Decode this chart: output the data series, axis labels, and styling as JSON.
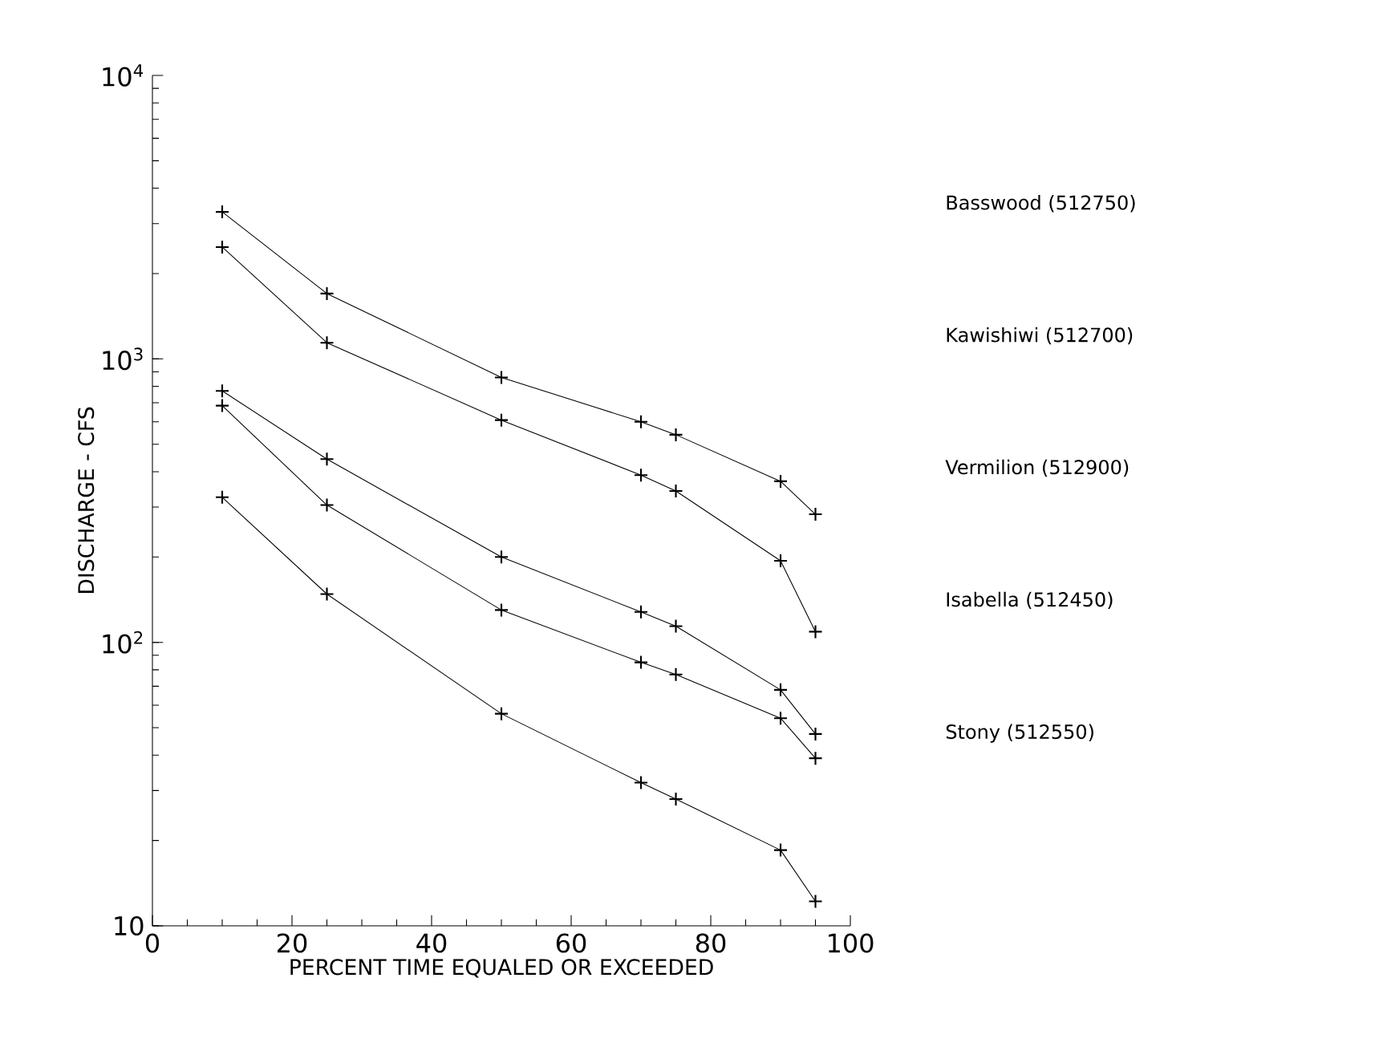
{
  "chart_data": {
    "type": "line",
    "xlabel": "PERCENT TIME EQUALED OR EXCEEDED",
    "ylabel": "DISCHARGE  -  CFS",
    "x": [
      10,
      25,
      50,
      70,
      75,
      90,
      95
    ],
    "series": [
      {
        "name": "Basswood (512750)",
        "color": "#000000",
        "values": [
          3300,
          1700,
          860,
          600,
          540,
          370,
          283
        ]
      },
      {
        "name": "Kawishiwi (512700)",
        "color": "#000000",
        "values": [
          2480,
          1140,
          608,
          389,
          342,
          194,
          109
        ]
      },
      {
        "name": "Vermilion (512900)",
        "color": "#000000",
        "values": [
          771,
          443,
          200,
          128,
          114,
          68,
          47.5
        ]
      },
      {
        "name": "Isabella (512450)",
        "color": "#000000",
        "values": [
          684,
          305,
          130,
          85,
          77,
          54,
          39
        ]
      },
      {
        "name": "Stony (512550)",
        "color": "#000000",
        "values": [
          325,
          148,
          56,
          32,
          28,
          18.5,
          12.2
        ]
      }
    ],
    "log": "y",
    "xlim": [
      0,
      100
    ],
    "ylim": [
      10,
      10000
    ],
    "xticks": [
      0,
      20,
      40,
      60,
      80,
      100
    ],
    "yticks": [
      10,
      {
        "value": 100,
        "label": "10$^{2}$"
      },
      {
        "value": 1000,
        "label": "10$^{3}$"
      },
      {
        "value": 10000,
        "label": "10$^{4}$"
      }
    ],
    "marker": "cross",
    "line_style": "solid",
    "grid": false,
    "legend": "right"
  }
}
